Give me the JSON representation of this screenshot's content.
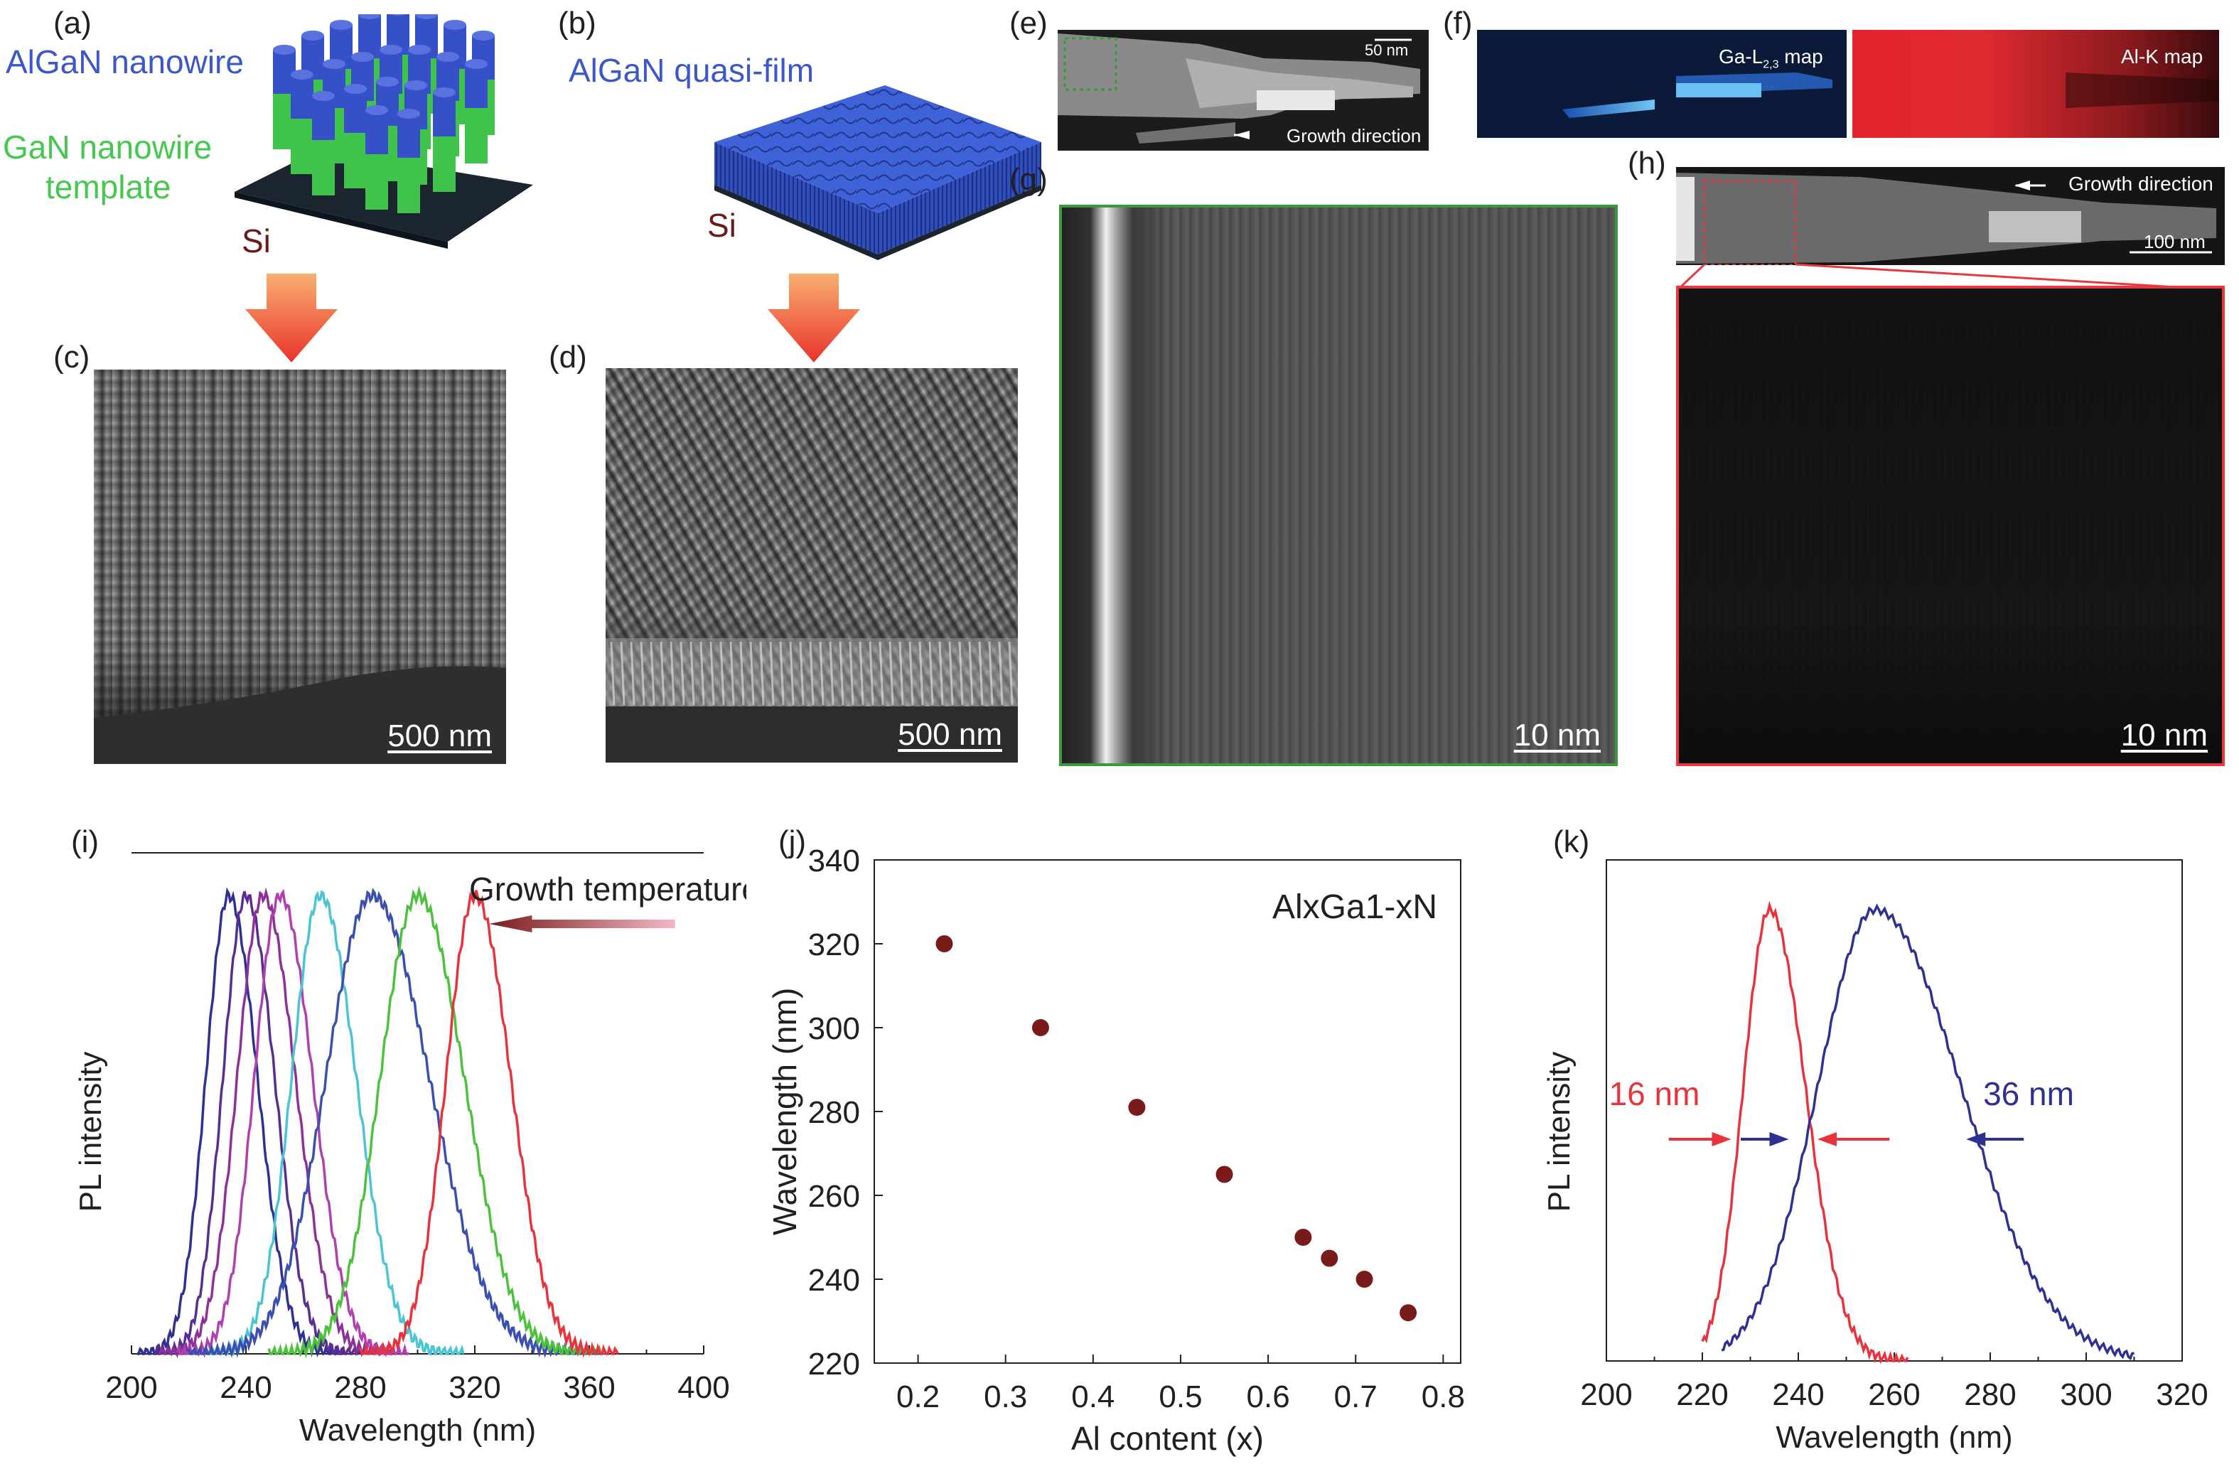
{
  "panels": {
    "a": {
      "label": "(a)",
      "top_text": "AlGaN nanowire",
      "mid_text": "GaN nanowire",
      "mid_text2": "template",
      "substrate": "Si"
    },
    "b": {
      "label": "(b)",
      "top_text": "AlGaN quasi-film",
      "substrate": "Si"
    },
    "c": {
      "label": "(c)",
      "scale": "500 nm"
    },
    "d": {
      "label": "(d)",
      "scale": "500 nm"
    },
    "e": {
      "label": "(e)",
      "scale": "50 nm",
      "arrow_text": "Growth direction"
    },
    "f": {
      "label": "(f)",
      "map1": "Ga-L",
      "map1_sub": "2,3",
      "map1_suffix": " map",
      "map2": "Al-K map"
    },
    "g": {
      "label": "(g)",
      "scale": "10 nm"
    },
    "h": {
      "label": "(h)",
      "arrow_text": "Growth direction",
      "scale_top": "100 nm",
      "scale": "10 nm"
    },
    "i": {
      "label": "(i)"
    },
    "j": {
      "label": "(j)"
    },
    "k": {
      "label": "(k)"
    }
  },
  "colors": {
    "blue": "#3c58c8",
    "green": "#46c850",
    "red": "#e8323c",
    "navy": "#2e3192",
    "dot": "#7a1b1b",
    "tem_green": "#3a9a3a",
    "tem_red": "#e43a3e"
  },
  "chart_data": [
    {
      "panel": "i",
      "type": "line",
      "xlabel": "Wavelength (nm)",
      "ylabel": "PL intensity",
      "xlim": [
        200,
        400
      ],
      "xticks": [
        200,
        240,
        280,
        320,
        360,
        400
      ],
      "annotation": "Growth temperature",
      "series": [
        {
          "peak": 234,
          "width": 8,
          "color": "#2e3192"
        },
        {
          "peak": 240,
          "width": 8,
          "color": "#5a2d91"
        },
        {
          "peak": 246,
          "width": 9,
          "color": "#8e2f9a"
        },
        {
          "peak": 252,
          "width": 9,
          "color": "#b03fb0"
        },
        {
          "peak": 266,
          "width": 10,
          "color": "#4bc4d4"
        },
        {
          "peak": 284,
          "width": 16,
          "color": "#3a4fb0"
        },
        {
          "peak": 300,
          "width": 13,
          "color": "#4cc23c"
        },
        {
          "peak": 320,
          "width": 10,
          "color": "#e8323c"
        }
      ]
    },
    {
      "panel": "j",
      "type": "scatter",
      "xlabel": "Al content (x)",
      "ylabel": "Wavelength (nm)",
      "xlim": [
        0.15,
        0.82
      ],
      "ylim": [
        220,
        340
      ],
      "xticks": [
        0.2,
        0.3,
        0.4,
        0.5,
        0.6,
        0.7,
        0.8
      ],
      "yticks": [
        220,
        240,
        260,
        280,
        300,
        320,
        340
      ],
      "annotation": "AlxGa1-xN",
      "points": [
        {
          "x": 0.23,
          "y": 320
        },
        {
          "x": 0.34,
          "y": 300
        },
        {
          "x": 0.45,
          "y": 281
        },
        {
          "x": 0.55,
          "y": 265
        },
        {
          "x": 0.64,
          "y": 250
        },
        {
          "x": 0.67,
          "y": 245
        },
        {
          "x": 0.71,
          "y": 240
        },
        {
          "x": 0.76,
          "y": 232
        }
      ]
    },
    {
      "panel": "k",
      "type": "line",
      "xlabel": "Wavelength (nm)",
      "ylabel": "PL intensity",
      "xlim": [
        200,
        320
      ],
      "xticks": [
        200,
        220,
        240,
        260,
        280,
        300,
        320
      ],
      "series": [
        {
          "name": "",
          "peak": 234,
          "fwhm_label": "16 nm",
          "color": "#e8323c"
        },
        {
          "name": "",
          "peak": 256,
          "fwhm_label": "36 nm",
          "color": "#2e3192"
        }
      ]
    }
  ]
}
